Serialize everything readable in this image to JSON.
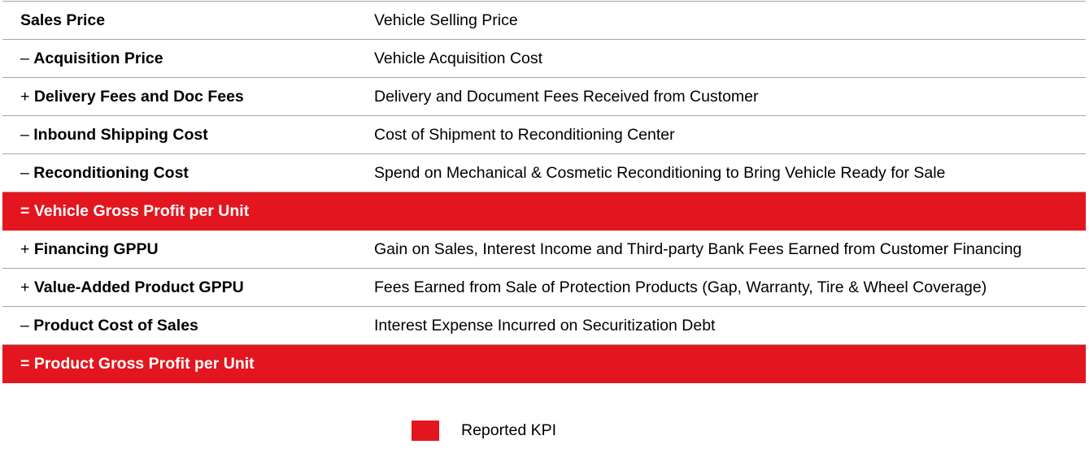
{
  "colors": {
    "kpi_fill": "#e3161f",
    "divider": "#a6a6a6",
    "text": "#000000",
    "kpi_text": "#ffffff"
  },
  "rows": [
    {
      "sign": "",
      "label": "Sales Price",
      "description": "Vehicle Selling Price",
      "kpi": false
    },
    {
      "sign": "– ",
      "label": "Acquisition Price",
      "description": "Vehicle Acquisition Cost",
      "kpi": false
    },
    {
      "sign": "+ ",
      "label": "Delivery Fees and Doc Fees",
      "description": "Delivery and Document Fees Received from Customer",
      "kpi": false
    },
    {
      "sign": "– ",
      "label": "Inbound Shipping Cost",
      "description": "Cost of Shipment to Reconditioning Center",
      "kpi": false
    },
    {
      "sign": "– ",
      "label": "Reconditioning Cost",
      "description": "Spend on Mechanical & Cosmetic Reconditioning to Bring Vehicle Ready for Sale",
      "kpi": false
    },
    {
      "sign": "= ",
      "label": "Vehicle Gross Profit per Unit",
      "description": "",
      "kpi": true
    },
    {
      "sign": "+ ",
      "label": "Financing GPPU",
      "description": "Gain on Sales, Interest Income and Third-party Bank Fees Earned from Customer Financing",
      "kpi": false
    },
    {
      "sign": "+ ",
      "label": "Value-Added Product GPPU",
      "description": "Fees Earned from Sale of Protection Products (Gap, Warranty, Tire & Wheel Coverage)",
      "kpi": false
    },
    {
      "sign": "– ",
      "label": "Product Cost of Sales",
      "description": "Interest Expense Incurred on Securitization Debt",
      "kpi": false
    },
    {
      "sign": "= ",
      "label": "Product Gross Profit per Unit",
      "description": "",
      "kpi": true
    }
  ],
  "legend": {
    "label": "Reported KPI"
  }
}
